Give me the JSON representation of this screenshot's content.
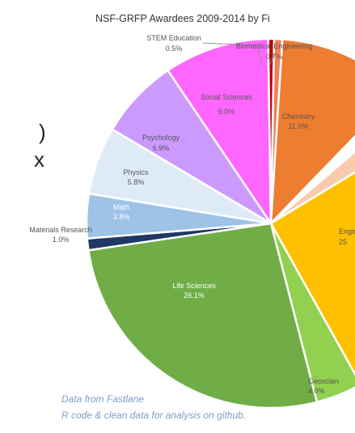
{
  "chart_data": {
    "type": "pie",
    "title": "NSF-GRFP Awardees 2009-2014 by Fi",
    "slices": [
      {
        "label": "Biomedical Engineering",
        "value": 0.7,
        "value_text": "0.7%",
        "color": "#f0805c"
      },
      {
        "label": "Chemistry",
        "value": 11.0,
        "value_text": "11.0%",
        "color": "#ed7d31"
      },
      {
        "label": "",
        "value": 1.5,
        "value_text": "",
        "color": "#ffffff"
      },
      {
        "label": "",
        "value": 2.5,
        "value_text": "",
        "color": "#f8cbad"
      },
      {
        "label": "Engin",
        "value": 25.0,
        "value_text": "25",
        "color": "#ffc000"
      },
      {
        "label": "Geoscien",
        "value": 4.0,
        "value_text": "4.0%",
        "color": "#92d050"
      },
      {
        "label": "Life Sciences",
        "value": 26.1,
        "value_text": "26.1%",
        "color": "#70ad47"
      },
      {
        "label": "Materials Research",
        "value": 1.0,
        "value_text": "1.0%",
        "color": "#1f3864"
      },
      {
        "label": "Math",
        "value": 3.8,
        "value_text": "3.8%",
        "color": "#9dc3e6"
      },
      {
        "label": "Physics",
        "value": 5.8,
        "value_text": "5.8%",
        "color": "#deebf7"
      },
      {
        "label": "Psychology",
        "value": 6.9,
        "value_text": "6.9%",
        "color": "#cc99ff"
      },
      {
        "label": "Social Sciences",
        "value": 9.0,
        "value_text": "9.0%",
        "color": "#ff66ff"
      },
      {
        "label": "STEM Education",
        "value": 0.5,
        "value_text": "0.5%",
        "color": "#c00000"
      }
    ]
  },
  "footer": {
    "line1": "Data from Fastlane",
    "line2": "R code & clean data for analysis on github."
  },
  "side_glyphs": {
    "glyph1": ")",
    "glyph2": "x"
  }
}
